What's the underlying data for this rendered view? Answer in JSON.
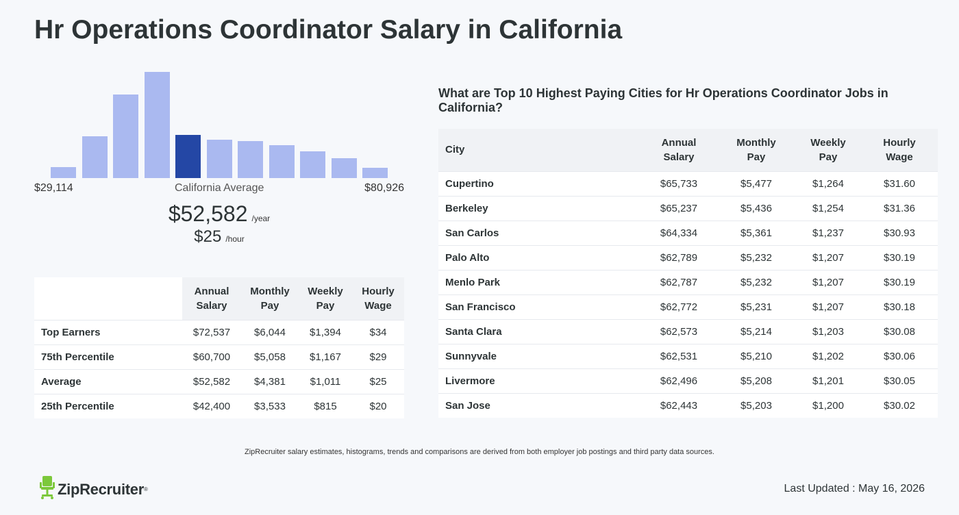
{
  "title": "Hr Operations Coordinator Salary in California",
  "chart_data": {
    "type": "bar",
    "values": [
      16,
      60,
      120,
      152,
      62,
      55,
      53,
      47,
      38,
      28,
      15
    ],
    "highlight_index": 4,
    "colors": {
      "bar": "#aab9f0",
      "highlight": "#2447a5"
    }
  },
  "histogram": {
    "min_label": "$29,114",
    "center_label": "California Average",
    "max_label": "$80,926"
  },
  "average": {
    "annual": "$52,582",
    "annual_unit": "/year",
    "hourly": "$25",
    "hourly_unit": "/hour"
  },
  "percentile_table": {
    "headers": [
      "Annual Salary",
      "Monthly Pay",
      "Weekly Pay",
      "Hourly Wage"
    ],
    "header_lines": [
      [
        "Annual",
        "Salary"
      ],
      [
        "Monthly",
        "Pay"
      ],
      [
        "Weekly",
        "Pay"
      ],
      [
        "Hourly",
        "Wage"
      ]
    ],
    "rows": [
      {
        "label": "Top Earners",
        "values": [
          "$72,537",
          "$6,044",
          "$1,394",
          "$34"
        ]
      },
      {
        "label": "75th Percentile",
        "values": [
          "$60,700",
          "$5,058",
          "$1,167",
          "$29"
        ]
      },
      {
        "label": "Average",
        "values": [
          "$52,582",
          "$4,381",
          "$1,011",
          "$25"
        ]
      },
      {
        "label": "25th Percentile",
        "values": [
          "$42,400",
          "$3,533",
          "$815",
          "$20"
        ]
      }
    ]
  },
  "cities": {
    "heading": "What are Top 10 Highest Paying Cities for Hr Operations Coordinator Jobs in California?",
    "city_header": "City",
    "header_lines": [
      [
        "Annual",
        "Salary"
      ],
      [
        "Monthly",
        "Pay"
      ],
      [
        "Weekly",
        "Pay"
      ],
      [
        "Hourly",
        "Wage"
      ]
    ],
    "rows": [
      {
        "city": "Cupertino",
        "values": [
          "$65,733",
          "$5,477",
          "$1,264",
          "$31.60"
        ]
      },
      {
        "city": "Berkeley",
        "values": [
          "$65,237",
          "$5,436",
          "$1,254",
          "$31.36"
        ]
      },
      {
        "city": "San Carlos",
        "values": [
          "$64,334",
          "$5,361",
          "$1,237",
          "$30.93"
        ]
      },
      {
        "city": "Palo Alto",
        "values": [
          "$62,789",
          "$5,232",
          "$1,207",
          "$30.19"
        ]
      },
      {
        "city": "Menlo Park",
        "values": [
          "$62,787",
          "$5,232",
          "$1,207",
          "$30.19"
        ]
      },
      {
        "city": "San Francisco",
        "values": [
          "$62,772",
          "$5,231",
          "$1,207",
          "$30.18"
        ]
      },
      {
        "city": "Santa Clara",
        "values": [
          "$62,573",
          "$5,214",
          "$1,203",
          "$30.08"
        ]
      },
      {
        "city": "Sunnyvale",
        "values": [
          "$62,531",
          "$5,210",
          "$1,202",
          "$30.06"
        ]
      },
      {
        "city": "Livermore",
        "values": [
          "$62,496",
          "$5,208",
          "$1,201",
          "$30.05"
        ]
      },
      {
        "city": "San Jose",
        "values": [
          "$62,443",
          "$5,203",
          "$1,200",
          "$30.02"
        ]
      }
    ]
  },
  "disclaimer": "ZipRecruiter salary estimates, histograms, trends and comparisons are derived from both employer job postings and third party data sources.",
  "footer": {
    "logo_text": "ZipRecruiter",
    "logo_mark": "®",
    "logo_color": "#7cc83b",
    "last_updated": "Last Updated : May 16, 2026"
  }
}
